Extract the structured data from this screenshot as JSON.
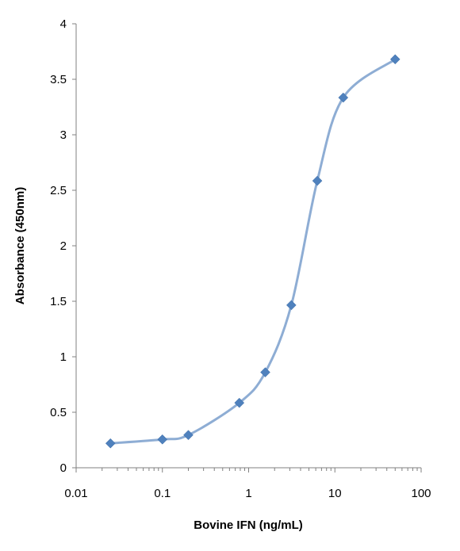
{
  "chart_data": {
    "type": "scatter",
    "title": "",
    "xlabel": "Bovine IFN (ng/mL)",
    "ylabel": "Absorbance (450nm)",
    "x_scale": "log",
    "xlim": [
      0.01,
      100
    ],
    "ylim": [
      0,
      4
    ],
    "x_ticks": [
      "0.01",
      "0.1",
      "1",
      "10",
      "100"
    ],
    "y_ticks": [
      "0",
      "0.5",
      "1",
      "1.5",
      "2",
      "2.5",
      "3",
      "3.5",
      "4"
    ],
    "grid": false,
    "legend": "none",
    "smooth_line": true,
    "marker": "diamond",
    "colors": {
      "marker": "#4F81BD",
      "line": "#8EADD4",
      "axis": "#808080"
    },
    "series": [
      {
        "x": [
          0.025,
          0.1,
          0.2,
          0.78,
          1.56,
          3.125,
          6.25,
          12.5,
          50
        ],
        "y": [
          0.22,
          0.255,
          0.295,
          0.585,
          0.86,
          1.465,
          2.585,
          3.335,
          3.68
        ]
      }
    ]
  }
}
